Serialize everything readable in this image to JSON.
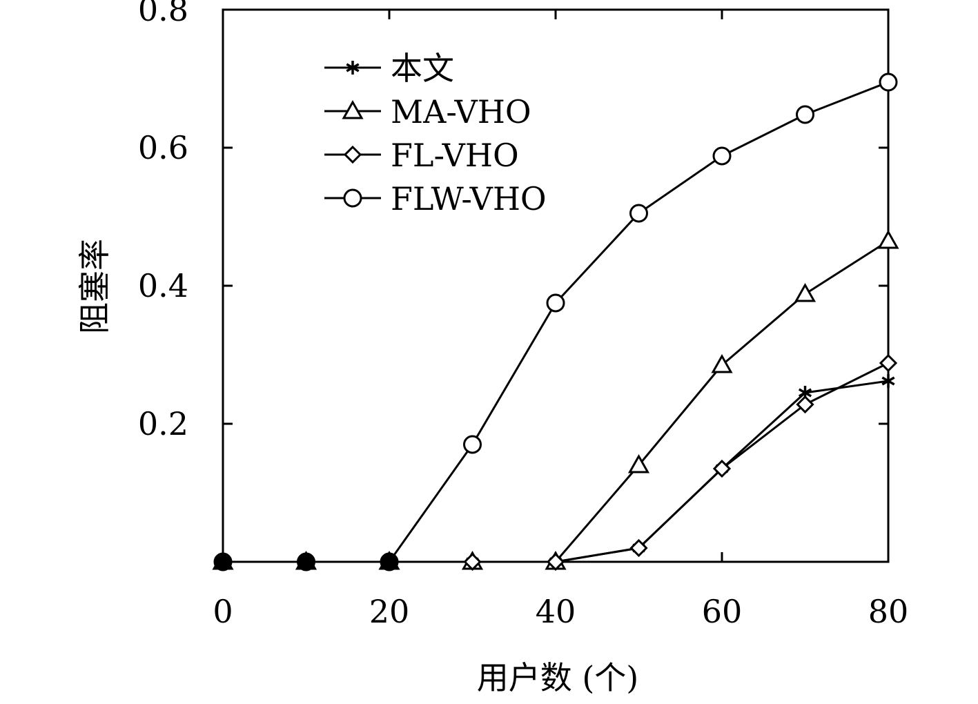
{
  "chart_data": {
    "type": "line",
    "xlabel": "用户数 (个)",
    "ylabel": "阻塞率",
    "xlim": [
      0,
      80
    ],
    "ylim": [
      0,
      0.8
    ],
    "xticks": [
      0,
      20,
      40,
      60,
      80
    ],
    "yticks": [
      0.2,
      0.4,
      0.6,
      0.8
    ],
    "grid": false,
    "legend_position": "top-left",
    "x": [
      0,
      10,
      20,
      30,
      40,
      50,
      60,
      70,
      80
    ],
    "series": [
      {
        "name": "本文",
        "marker": "asterisk",
        "values": [
          0,
          0,
          0,
          0,
          0,
          0.02,
          0.135,
          0.245,
          0.262
        ]
      },
      {
        "name": "MA-VHO",
        "marker": "triangle",
        "values": [
          0,
          0,
          0,
          0,
          0,
          0.14,
          0.285,
          0.388,
          0.465
        ]
      },
      {
        "name": "FL-VHO",
        "marker": "diamond",
        "values": [
          0,
          0,
          0,
          0,
          0,
          0.02,
          0.135,
          0.228,
          0.288
        ]
      },
      {
        "name": "FLW-VHO",
        "marker": "circle",
        "values": [
          0,
          0,
          0,
          0.17,
          0.375,
          0.505,
          0.588,
          0.648,
          0.695
        ]
      }
    ]
  }
}
